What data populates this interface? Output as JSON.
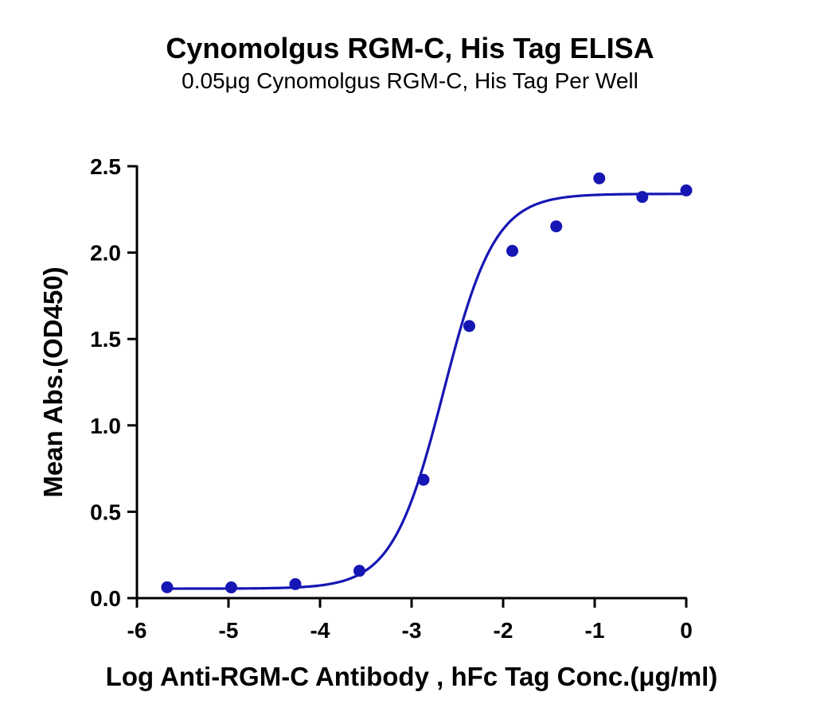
{
  "chart_data": {
    "type": "scatter",
    "title": "Cynomolgus RGM-C, His Tag ELISA",
    "subtitle": "0.05μg Cynomolgus RGM-C, His Tag Per Well",
    "xlabel": "Log Anti-RGM-C Antibody , hFc Tag Conc.(μg/ml)",
    "ylabel": "Mean Abs.(OD450)",
    "xlim": [
      -6,
      0
    ],
    "ylim": [
      0,
      2.5
    ],
    "xticks": [
      -6,
      -5,
      -4,
      -3,
      -2,
      -1,
      0
    ],
    "xtick_labels": [
      "-6",
      "-5",
      "-4",
      "-3",
      "-2",
      "-1",
      "0"
    ],
    "yticks": [
      0,
      0.5,
      1.0,
      1.5,
      2.0,
      2.5
    ],
    "ytick_labels": [
      "0.0",
      "0.5",
      "1.0",
      "1.5",
      "2.0",
      "2.5"
    ],
    "grid": false,
    "series": [
      {
        "x": [
          -5.67,
          -4.97,
          -4.27,
          -3.57,
          -2.87,
          -2.37,
          -1.9,
          -1.42,
          -0.95,
          -0.48,
          0
        ],
        "y": [
          0.063,
          0.062,
          0.081,
          0.158,
          0.685,
          1.575,
          2.01,
          2.152,
          2.43,
          2.322,
          2.36
        ],
        "color": "#1616b4"
      }
    ],
    "fit": {
      "model": "4PL",
      "bottom": 0.055,
      "top": 2.34,
      "logEC50": -2.65,
      "hill": 1.55,
      "color": "#1616b4"
    }
  }
}
